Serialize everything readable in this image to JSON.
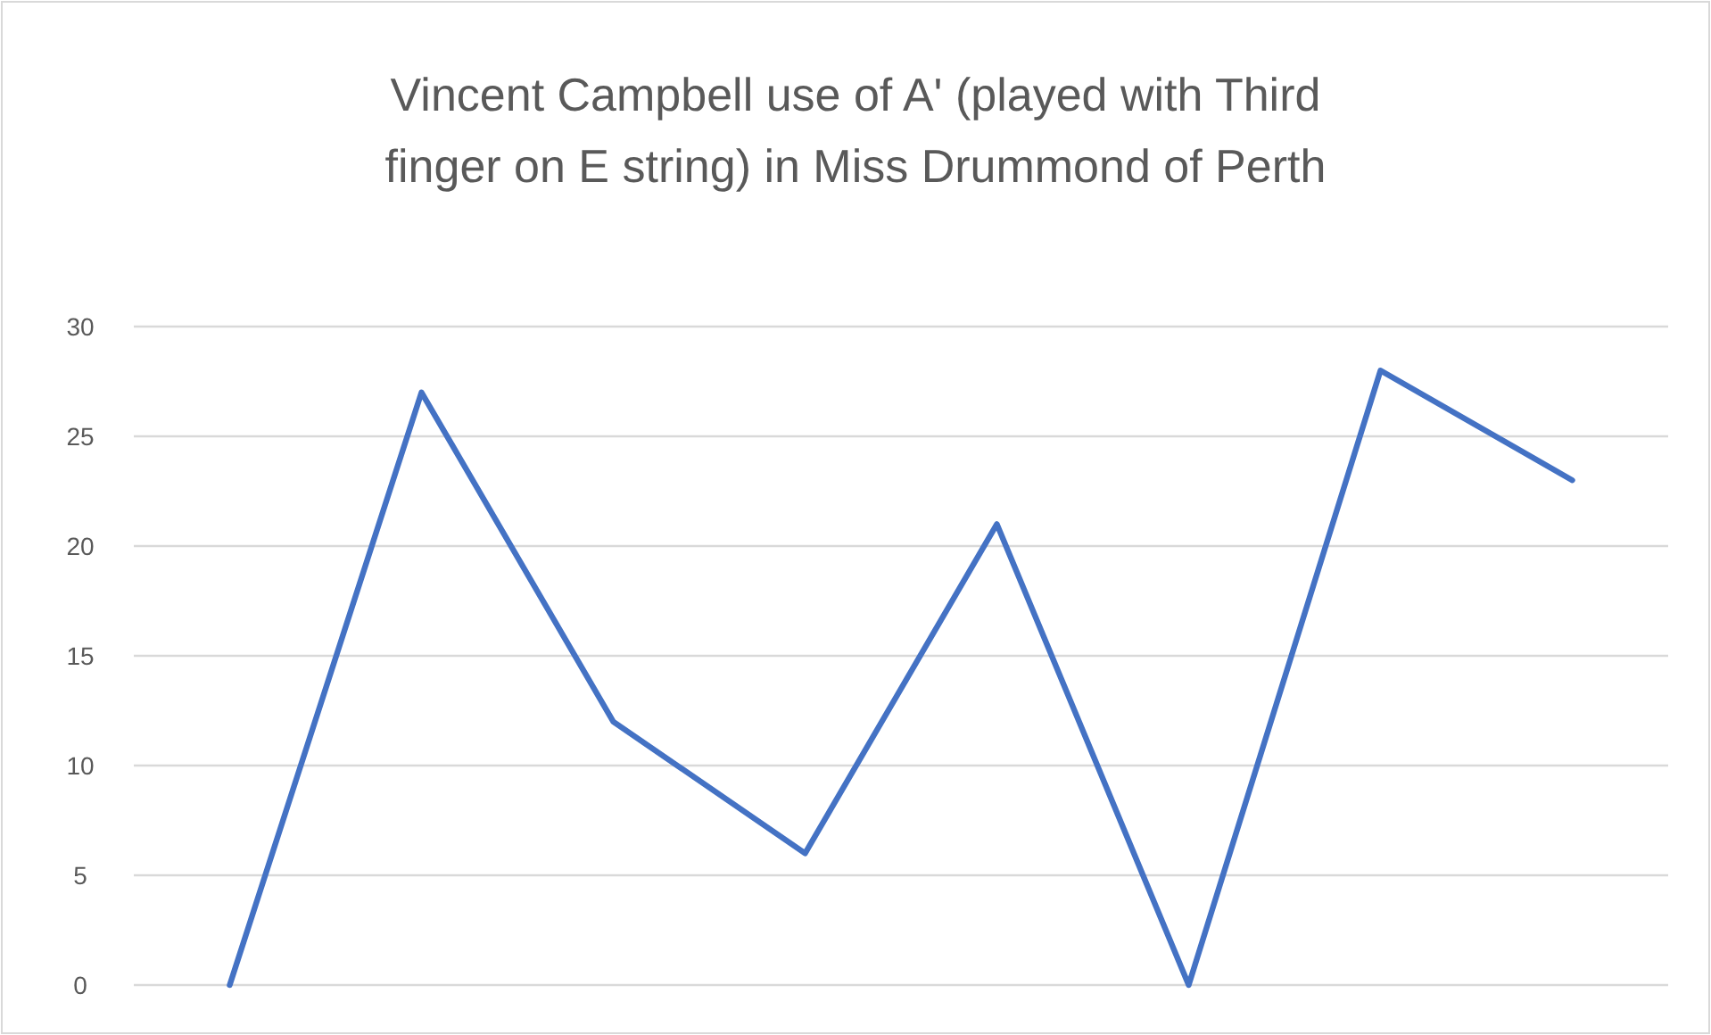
{
  "chart_data": {
    "type": "line",
    "title": "Vincent Campbell use of A' (played with Third finger on E string) in Miss Drummond of Perth",
    "categories": [
      null,
      null,
      null,
      null,
      null,
      null,
      null,
      null
    ],
    "series": [
      {
        "color": "#4472c4",
        "values": [
          0,
          27,
          12,
          6,
          21,
          0,
          28,
          23
        ]
      }
    ],
    "ylim": [
      0,
      30
    ],
    "yticks": [
      0,
      5,
      10,
      15,
      20,
      25,
      30
    ],
    "grid": "y",
    "tick_labels": "y"
  }
}
